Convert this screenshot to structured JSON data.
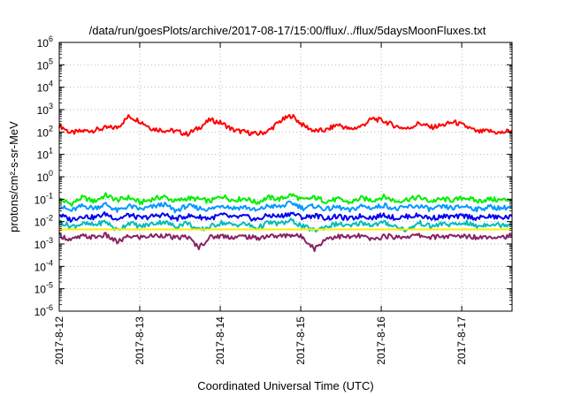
{
  "chart_data": {
    "type": "line",
    "title": "/data/run/goesPlots/archive/2017-08-17/15:00/flux/../flux/5daysMoonFluxes.txt",
    "xlabel": "Coordinated Universal Time (UTC)",
    "ylabel": "protons/cm²-s-sr-MeV",
    "y_scale": "log",
    "ylim": [
      1e-06,
      1000000.0
    ],
    "y_ticks": [
      {
        "value": -6,
        "base": "10",
        "exp": "-6"
      },
      {
        "value": -5,
        "base": "10",
        "exp": "-5"
      },
      {
        "value": -4,
        "base": "10",
        "exp": "-4"
      },
      {
        "value": -3,
        "base": "10",
        "exp": "-3"
      },
      {
        "value": -2,
        "base": "10",
        "exp": "-2"
      },
      {
        "value": -1,
        "base": "10",
        "exp": "-1"
      },
      {
        "value": 0,
        "base": "10",
        "exp": "0"
      },
      {
        "value": 1,
        "base": "10",
        "exp": "1"
      },
      {
        "value": 2,
        "base": "10",
        "exp": "2"
      },
      {
        "value": 3,
        "base": "10",
        "exp": "3"
      },
      {
        "value": 4,
        "base": "10",
        "exp": "4"
      },
      {
        "value": 5,
        "base": "10",
        "exp": "5"
      },
      {
        "value": 6,
        "base": "10",
        "exp": "6"
      }
    ],
    "xlim": [
      "2017-08-12",
      "2017-08-17 15:00"
    ],
    "x_ticks": [
      {
        "date": "2017-08-12",
        "label": "2017-8-12"
      },
      {
        "date": "2017-08-13",
        "label": "2017-8-13"
      },
      {
        "date": "2017-08-14",
        "label": "2017-8-14"
      },
      {
        "date": "2017-08-15",
        "label": "2017-8-15"
      },
      {
        "date": "2017-08-16",
        "label": "2017-8-16"
      },
      {
        "date": "2017-08-17",
        "label": "2017-8-17"
      }
    ],
    "grid": true,
    "series": [
      {
        "color": "#ff0000",
        "values": [
          200,
          90,
          110,
          120,
          150,
          160,
          500,
          300,
          140,
          120,
          110,
          80,
          150,
          350,
          250,
          120,
          100,
          80,
          110,
          300,
          550,
          200,
          110,
          120,
          220,
          130,
          180,
          400,
          300,
          180,
          140,
          250,
          160,
          200,
          280,
          180,
          100,
          110,
          90,
          120
        ]
      },
      {
        "color": "#00ee00",
        "values": [
          0.1,
          0.06,
          0.12,
          0.08,
          0.15,
          0.09,
          0.12,
          0.07,
          0.1,
          0.13,
          0.08,
          0.11,
          0.1,
          0.08,
          0.14,
          0.09,
          0.11,
          0.07,
          0.12,
          0.1,
          0.16,
          0.09,
          0.12,
          0.08,
          0.1,
          0.07,
          0.11,
          0.09,
          0.13,
          0.08,
          0.1,
          0.12,
          0.08,
          0.1,
          0.09,
          0.12,
          0.08,
          0.1,
          0.09,
          0.1
        ]
      },
      {
        "color": "#0099ff",
        "values": [
          0.05,
          0.03,
          0.05,
          0.04,
          0.06,
          0.03,
          0.05,
          0.035,
          0.045,
          0.06,
          0.03,
          0.05,
          0.04,
          0.035,
          0.055,
          0.04,
          0.045,
          0.03,
          0.05,
          0.045,
          0.07,
          0.04,
          0.05,
          0.035,
          0.045,
          0.03,
          0.05,
          0.04,
          0.055,
          0.035,
          0.045,
          0.05,
          0.035,
          0.045,
          0.04,
          0.05,
          0.035,
          0.045,
          0.04,
          0.045
        ]
      },
      {
        "color": "#0000ee",
        "values": [
          0.02,
          0.012,
          0.018,
          0.015,
          0.022,
          0.013,
          0.02,
          0.014,
          0.017,
          0.021,
          0.013,
          0.018,
          0.016,
          0.014,
          0.02,
          0.015,
          0.017,
          0.012,
          0.019,
          0.017,
          0.024,
          0.015,
          0.019,
          0.014,
          0.017,
          0.013,
          0.018,
          0.015,
          0.02,
          0.014,
          0.017,
          0.019,
          0.014,
          0.017,
          0.016,
          0.018,
          0.014,
          0.017,
          0.015,
          0.016
        ]
      },
      {
        "color": "#00bbbb",
        "values": [
          0.01,
          0.006,
          0.008,
          0.007,
          0.01,
          0.004,
          0.009,
          0.006,
          0.008,
          0.01,
          0.006,
          0.009,
          0.004,
          0.006,
          0.009,
          0.007,
          0.008,
          0.005,
          0.009,
          0.008,
          0.011,
          0.006,
          0.004,
          0.006,
          0.008,
          0.006,
          0.009,
          0.007,
          0.009,
          0.006,
          0.004,
          0.009,
          0.006,
          0.008,
          0.007,
          0.009,
          0.006,
          0.008,
          0.007,
          0.008
        ]
      },
      {
        "color": "#ffee00",
        "values": [
          0.0045,
          0.0045,
          0.0045,
          0.0045,
          0.0045,
          0.0045,
          0.0045,
          0.0045,
          0.0045,
          0.0045,
          0.0045,
          0.0045,
          0.0045,
          0.0045,
          0.0045,
          0.0045,
          0.0045,
          0.0045,
          0.0045,
          0.0045,
          0.0045,
          0.0045,
          0.0045,
          0.0045,
          0.0045,
          0.0045,
          0.0045,
          0.0045,
          0.0045,
          0.0045,
          0.0045,
          0.0045,
          0.0045,
          0.0045,
          0.0045,
          0.0045,
          0.0045,
          0.0045,
          0.0045,
          0.0045
        ]
      },
      {
        "color": "#882266",
        "values": [
          0.0025,
          0.0015,
          0.0022,
          0.002,
          0.0025,
          0.0012,
          0.0022,
          0.002,
          0.0023,
          0.0025,
          0.0018,
          0.0022,
          0.0007,
          0.002,
          0.0023,
          0.002,
          0.0022,
          0.0018,
          0.0023,
          0.0022,
          0.0026,
          0.002,
          0.0006,
          0.0018,
          0.0022,
          0.002,
          0.0023,
          0.0015,
          0.0023,
          0.002,
          0.0022,
          0.0024,
          0.002,
          0.0022,
          0.0021,
          0.0023,
          0.002,
          0.0022,
          0.0021,
          0.0022
        ]
      }
    ]
  }
}
